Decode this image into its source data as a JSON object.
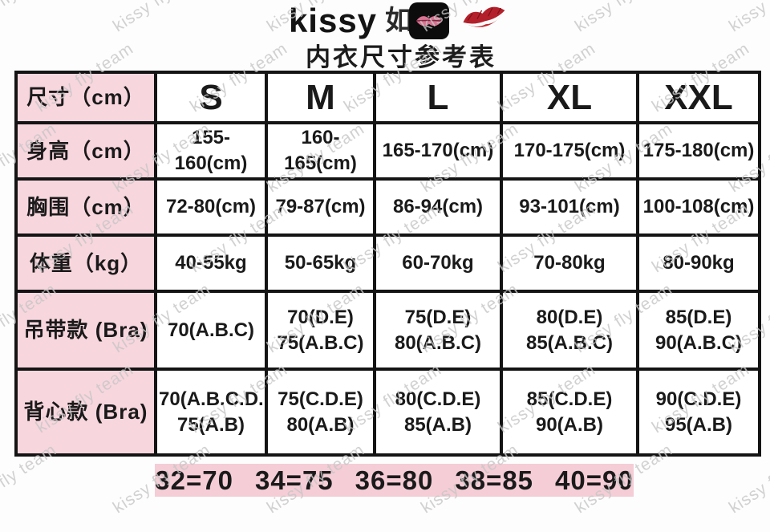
{
  "title": {
    "brand": "kissy",
    "brand_cn": "如吻",
    "subtitle": "内衣尺寸参考表"
  },
  "icons": {
    "brand_badge": "lips-app-icon",
    "kiss_mark": "kiss-lips-icon"
  },
  "colors": {
    "label_pink": "#f8d6de",
    "bar_pink": "#f5cdd6",
    "border_black": "#141414",
    "watermark_gray": "#c6c6c6",
    "lips_pink": "#d97292",
    "kiss_red": "#b3202b"
  },
  "watermark": {
    "text": "kissy fly team"
  },
  "table": {
    "header": [
      "尺寸（cm）",
      "S",
      "M",
      "L",
      "XL",
      "XXL"
    ],
    "rows": [
      {
        "label": "身高（cm）",
        "cells": [
          "155-160(cm)",
          "160-165(cm)",
          "165-170(cm)",
          "170-175(cm)",
          "175-180(cm)"
        ]
      },
      {
        "label": "胸围（cm）",
        "cells": [
          "72-80(cm)",
          "79-87(cm)",
          "86-94(cm)",
          "93-101(cm)",
          "100-108(cm)"
        ]
      },
      {
        "label": "体重（kg）",
        "cells": [
          "40-55kg",
          "50-65kg",
          "60-70kg",
          "70-80kg",
          "80-90kg"
        ]
      },
      {
        "label": "吊带款 (Bra)",
        "cells": [
          "70(A.B.C)",
          "70(D.E)\n75(A.B.C)",
          "75(D.E)\n80(A.B.C)",
          "80(D.E)\n85(A.B.C)",
          "85(D.E)\n90(A.B.C)"
        ]
      },
      {
        "label": "背心款 (Bra)",
        "cells": [
          "70(A.B.C.D.E)\n75(A.B)",
          "75(C.D.E)\n80(A.B)",
          "80(C.D.E)\n85(A.B)",
          "85(C.D.E)\n90(A.B)",
          "90(C.D.E)\n95(A.B)"
        ]
      }
    ]
  },
  "conversions": [
    "32=70",
    "34=75",
    "36=80",
    "38=85",
    "40=90"
  ]
}
